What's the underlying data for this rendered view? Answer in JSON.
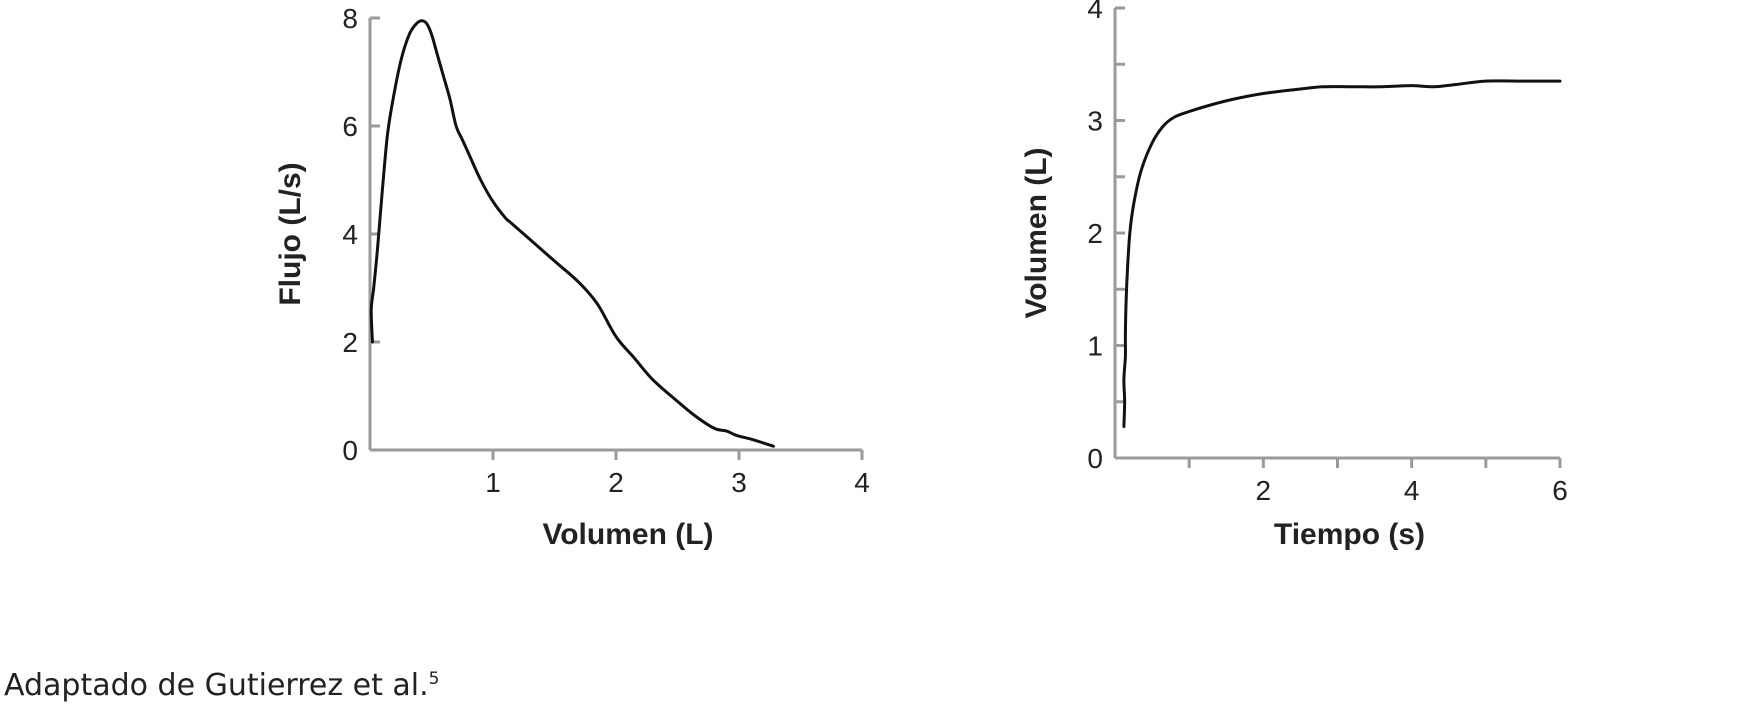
{
  "caption": {
    "text": "Adaptado de Gutierrez et al.",
    "superscript": "5"
  },
  "chart_data": [
    {
      "type": "line",
      "xlabel": "Volumen (L)",
      "ylabel": "Flujo (L/s)",
      "xlim": [
        0,
        4
      ],
      "ylim": [
        0,
        8
      ],
      "x_ticks": [
        1,
        2,
        3,
        4
      ],
      "x_tick_labels": [
        "1",
        "2",
        "3",
        "4"
      ],
      "y_ticks": [
        0,
        2,
        4,
        6,
        8
      ],
      "y_tick_labels": [
        "0",
        "2",
        "4",
        "6",
        "8"
      ],
      "grid": false,
      "color": "#111111",
      "series": [
        {
          "x": [
            0.02,
            0.01,
            0.03,
            0.06,
            0.1,
            0.14,
            0.18,
            0.25,
            0.32,
            0.38,
            0.42,
            0.46,
            0.5,
            0.55,
            0.6,
            0.65,
            0.7,
            0.75,
            0.8,
            0.9,
            1.0,
            1.1,
            1.15,
            1.3,
            1.5,
            1.7,
            1.85,
            2.0,
            2.15,
            2.3,
            2.5,
            2.65,
            2.8,
            2.9,
            2.98,
            3.1,
            3.28
          ],
          "y": [
            2.0,
            2.6,
            3.0,
            3.7,
            4.8,
            5.8,
            6.4,
            7.2,
            7.7,
            7.9,
            7.95,
            7.9,
            7.7,
            7.3,
            6.9,
            6.5,
            6.0,
            5.75,
            5.5,
            5.0,
            4.6,
            4.3,
            4.2,
            3.9,
            3.5,
            3.1,
            2.7,
            2.1,
            1.7,
            1.3,
            0.9,
            0.62,
            0.4,
            0.35,
            0.27,
            0.2,
            0.07
          ]
        }
      ]
    },
    {
      "type": "line",
      "xlabel": "Tiempo (s)",
      "ylabel": "Volumen (L)",
      "xlim": [
        0,
        6
      ],
      "ylim": [
        0,
        4
      ],
      "x_ticks": [
        1,
        2,
        3,
        4,
        5,
        6
      ],
      "x_tick_labels": [
        "",
        "2",
        "",
        "4",
        "",
        "6"
      ],
      "y_ticks": [
        0,
        0.5,
        1,
        1.5,
        2,
        2.5,
        3,
        3.5,
        4
      ],
      "y_tick_labels": [
        "0",
        "",
        "1",
        "",
        "2",
        "",
        "3",
        "",
        "4"
      ],
      "grid": false,
      "color": "#111111",
      "series": [
        {
          "x": [
            0.12,
            0.13,
            0.12,
            0.14,
            0.14,
            0.15,
            0.17,
            0.2,
            0.25,
            0.35,
            0.5,
            0.65,
            0.8,
            1.0,
            1.3,
            1.6,
            2.0,
            2.5,
            2.8,
            3.2,
            3.6,
            4.0,
            4.3,
            4.6,
            5.0,
            5.5,
            6.0
          ],
          "y": [
            0.28,
            0.5,
            0.7,
            0.9,
            1.1,
            1.4,
            1.7,
            2.0,
            2.25,
            2.55,
            2.8,
            2.95,
            3.03,
            3.08,
            3.14,
            3.19,
            3.24,
            3.28,
            3.3,
            3.3,
            3.3,
            3.31,
            3.3,
            3.32,
            3.35,
            3.35,
            3.35
          ]
        }
      ]
    }
  ]
}
